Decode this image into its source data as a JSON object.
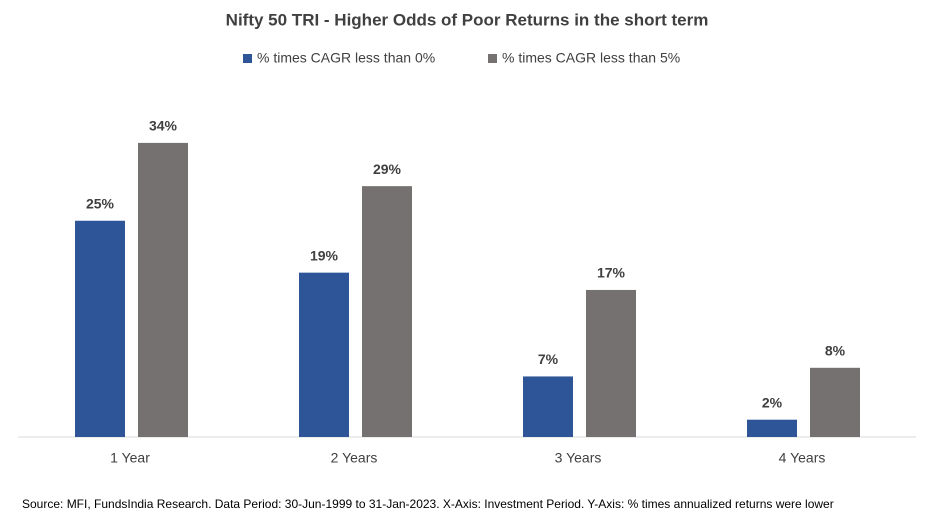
{
  "chart_data": {
    "type": "bar",
    "title": "Nifty 50 TRI - Higher Odds of Poor Returns in the short term",
    "categories": [
      "1 Year",
      "2 Years",
      "3 Years",
      "4 Years"
    ],
    "series": [
      {
        "name": "% times CAGR less than 0%",
        "color": "#2e5597",
        "values": [
          25,
          19,
          7,
          2
        ],
        "value_labels": [
          "25%",
          "19%",
          "7%",
          "2%"
        ]
      },
      {
        "name": "% times CAGR less than 5%",
        "color": "#767171",
        "values": [
          34,
          29,
          17,
          8
        ],
        "value_labels": [
          "34%",
          "29%",
          "17%",
          "8%"
        ]
      }
    ],
    "source": "Source: MFI, FundsIndia Research. Data Period: 30-Jun-1999 to 31-Jan-2023. X-Axis: Investment Period. Y-Axis: % times annualized returns were lower"
  }
}
